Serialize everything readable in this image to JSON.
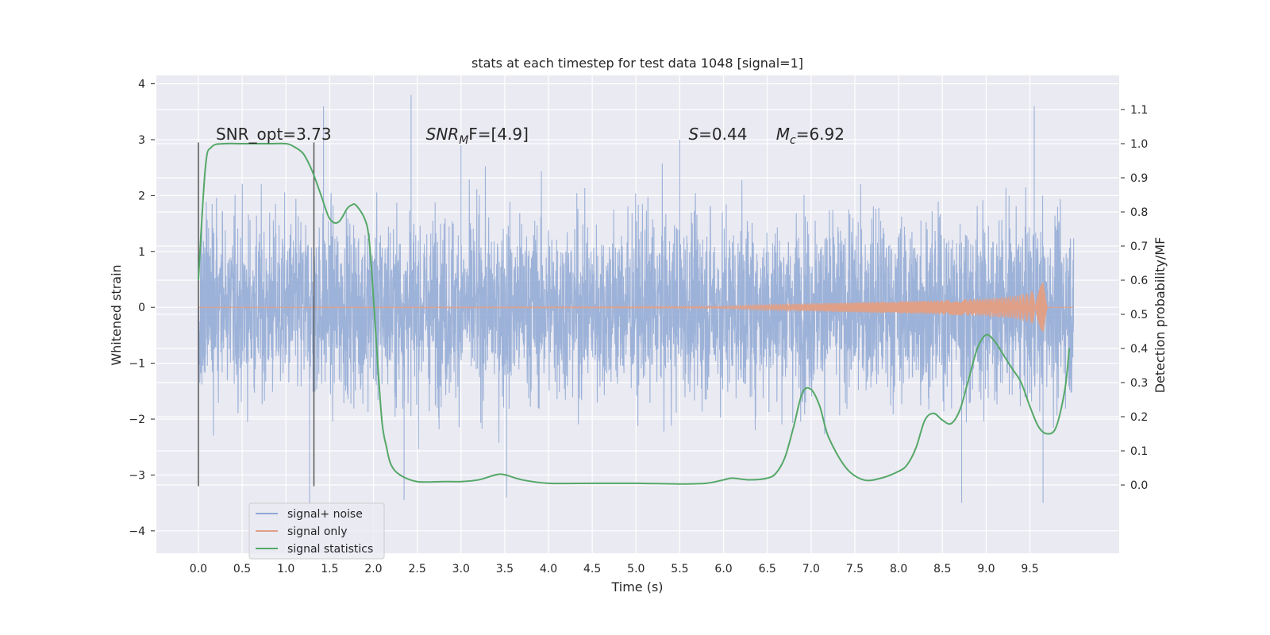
{
  "chart_data": {
    "type": "line",
    "title": "stats at each timestep for test data 1048 [signal=1]",
    "xlabel": "Time (s)",
    "ylabel_left": "Whitened strain",
    "ylabel_right": "Detection probability/MF",
    "xlim": [
      -0.48,
      10.52
    ],
    "ylim_left": [
      -4.4,
      4.15
    ],
    "ylim_right": [
      -0.2,
      1.2
    ],
    "x_ticks": [
      "0.0",
      "0.5",
      "1.0",
      "1.5",
      "2.0",
      "2.5",
      "3.0",
      "3.5",
      "4.0",
      "4.5",
      "5.0",
      "5.5",
      "6.0",
      "6.5",
      "7.0",
      "7.5",
      "8.0",
      "8.5",
      "9.0",
      "9.5"
    ],
    "y_left_ticks": [
      "4",
      "3",
      "2",
      "1",
      "0",
      "−1",
      "−2",
      "−3",
      "−4"
    ],
    "y_right_ticks": [
      "1.1",
      "1.0",
      "0.9",
      "0.8",
      "0.7",
      "0.6",
      "0.5",
      "0.4",
      "0.3",
      "0.2",
      "0.1",
      "0.0"
    ],
    "grid": true,
    "legend_position": "lower-left",
    "annotations": [
      {
        "text": "SNR_opt=3.73",
        "x": 0.2,
        "y": 3.0
      },
      {
        "base": "SNR",
        "sub": "M",
        "rest": "F=[4.9]",
        "x": 2.6,
        "y": 3.0
      },
      {
        "base": "S",
        "rest": "=0.44",
        "x": 5.6,
        "y": 3.0
      },
      {
        "base": "M",
        "sub": "c",
        "rest": "=6.92",
        "x": 6.6,
        "y": 3.0
      }
    ],
    "vlines": [
      {
        "x": 0.0,
        "ymin": -3.2,
        "ymax": 2.95
      },
      {
        "x": 1.32,
        "ymin": -3.2,
        "ymax": 2.95
      }
    ],
    "series": [
      {
        "name": "signal+ noise",
        "color": "#8fa8d4",
        "axis": "left",
        "x_range": [
          0.0,
          10.0
        ],
        "typical_band": [
          -1.6,
          1.7
        ],
        "peak_max": 3.8,
        "peak_min": -3.55,
        "description_values": {
          "spikes_high": [
            [
              1.43,
              3.6
            ],
            [
              2.43,
              3.8
            ],
            [
              9.55,
              3.6
            ],
            [
              3.0,
              2.9
            ],
            [
              5.5,
              3.0
            ]
          ],
          "spikes_low": [
            [
              8.72,
              -3.5
            ],
            [
              9.65,
              -3.5
            ],
            [
              2.35,
              -3.45
            ],
            [
              3.52,
              -3.4
            ],
            [
              1.27,
              -3.5
            ]
          ]
        }
      },
      {
        "name": "signal only",
        "color": "#e0a088",
        "axis": "left",
        "x": [
          0.0,
          6.0,
          6.5,
          7.0,
          7.5,
          8.0,
          8.5,
          9.0,
          9.3,
          9.5,
          9.6,
          9.65,
          9.68,
          9.7,
          10.0
        ],
        "envelope": [
          0.0,
          0.02,
          0.05,
          0.07,
          0.09,
          0.11,
          0.13,
          0.16,
          0.2,
          0.27,
          0.35,
          0.48,
          0.2,
          0.0,
          0.0
        ]
      },
      {
        "name": "signal statistics",
        "color": "#55a868",
        "axis": "right",
        "x": [
          0.0,
          0.08,
          0.15,
          0.3,
          0.5,
          0.8,
          1.0,
          1.1,
          1.2,
          1.3,
          1.4,
          1.5,
          1.6,
          1.7,
          1.75,
          1.8,
          1.9,
          1.95,
          2.0,
          2.05,
          2.1,
          2.15,
          2.2,
          2.3,
          2.5,
          2.8,
          3.0,
          3.2,
          3.4,
          3.5,
          3.7,
          4.0,
          4.5,
          5.0,
          5.5,
          5.8,
          6.0,
          6.1,
          6.3,
          6.5,
          6.6,
          6.7,
          6.8,
          6.9,
          7.0,
          7.1,
          7.2,
          7.4,
          7.6,
          7.8,
          8.0,
          8.1,
          8.2,
          8.3,
          8.4,
          8.5,
          8.6,
          8.7,
          8.8,
          8.9,
          9.0,
          9.1,
          9.2,
          9.3,
          9.4,
          9.5,
          9.6,
          9.7,
          9.8,
          9.9,
          9.95
        ],
        "values": [
          0.6,
          0.93,
          0.99,
          1.0,
          1.0,
          1.0,
          1.0,
          0.99,
          0.97,
          0.92,
          0.85,
          0.78,
          0.77,
          0.81,
          0.82,
          0.82,
          0.78,
          0.72,
          0.55,
          0.35,
          0.18,
          0.11,
          0.06,
          0.03,
          0.01,
          0.01,
          0.01,
          0.015,
          0.03,
          0.03,
          0.015,
          0.005,
          0.005,
          0.005,
          0.003,
          0.005,
          0.015,
          0.02,
          0.015,
          0.02,
          0.035,
          0.08,
          0.17,
          0.27,
          0.28,
          0.23,
          0.14,
          0.05,
          0.015,
          0.02,
          0.04,
          0.06,
          0.11,
          0.19,
          0.21,
          0.19,
          0.18,
          0.22,
          0.31,
          0.4,
          0.44,
          0.42,
          0.38,
          0.34,
          0.3,
          0.23,
          0.17,
          0.15,
          0.17,
          0.28,
          0.4
        ]
      }
    ]
  }
}
